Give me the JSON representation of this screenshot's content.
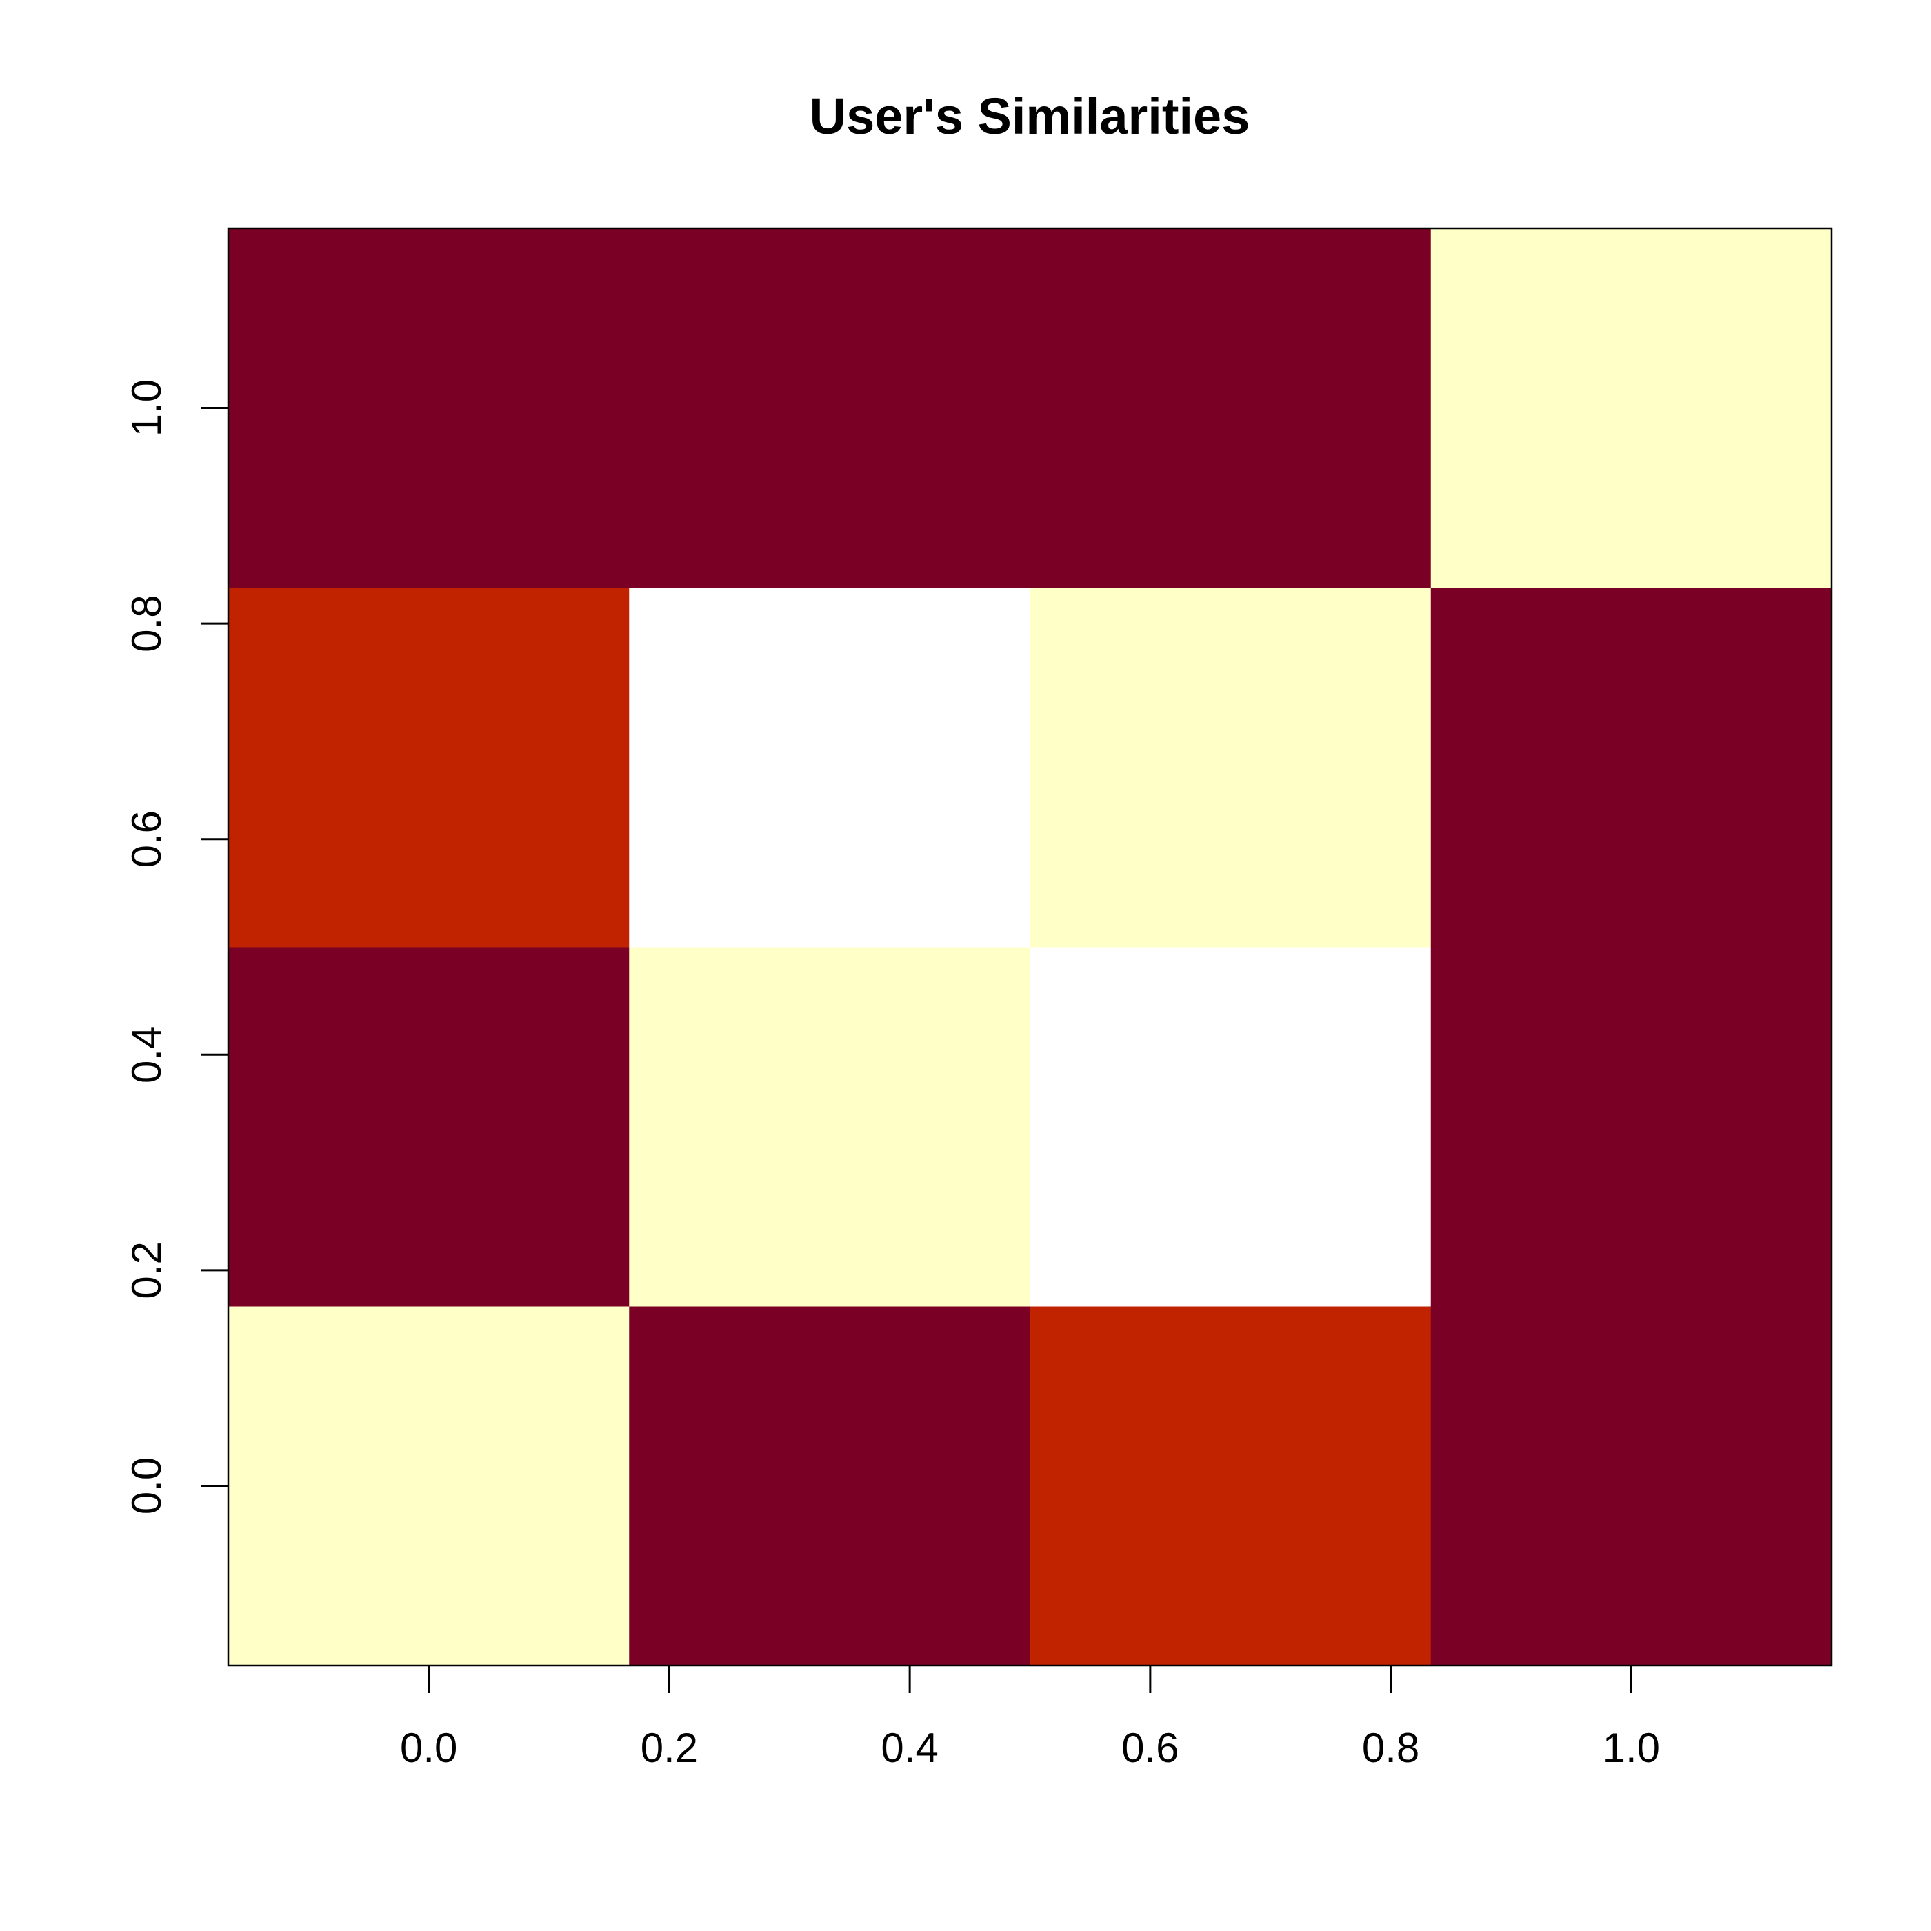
{
  "chart_data": {
    "type": "heatmap",
    "title": "User's Similarities",
    "xlabel": "",
    "ylabel": "",
    "xlim": [
      -0.1667,
      1.1667
    ],
    "ylim": [
      -0.1667,
      1.1667
    ],
    "x_ticks": [
      {
        "value": 0.0,
        "label": "0.0"
      },
      {
        "value": 0.2,
        "label": "0.2"
      },
      {
        "value": 0.4,
        "label": "0.4"
      },
      {
        "value": 0.6,
        "label": "0.6"
      },
      {
        "value": 0.8,
        "label": "0.8"
      },
      {
        "value": 1.0,
        "label": "1.0"
      }
    ],
    "y_ticks": [
      {
        "value": 0.0,
        "label": "0.0"
      },
      {
        "value": 0.2,
        "label": "0.2"
      },
      {
        "value": 0.4,
        "label": "0.4"
      },
      {
        "value": 0.6,
        "label": "0.6"
      },
      {
        "value": 0.8,
        "label": "0.8"
      },
      {
        "value": 1.0,
        "label": "1.0"
      }
    ],
    "cell_centers": [
      0.0,
      0.3333,
      0.6667,
      1.0
    ],
    "palette": [
      "#7A0026",
      "#C12200",
      "#FFFFC8",
      "#FFFFFF"
    ],
    "rows_bottom_to_top": [
      [
        "#FFFFC8",
        "#7A0026",
        "#C12200",
        "#7A0026"
      ],
      [
        "#7A0026",
        "#FFFFC8",
        "#FFFFFF",
        "#7A0026"
      ],
      [
        "#C12200",
        "#FFFFFF",
        "#FFFFC8",
        "#7A0026"
      ],
      [
        "#7A0026",
        "#7A0026",
        "#7A0026",
        "#FFFFC8"
      ]
    ],
    "grid": false,
    "legend": "none"
  }
}
